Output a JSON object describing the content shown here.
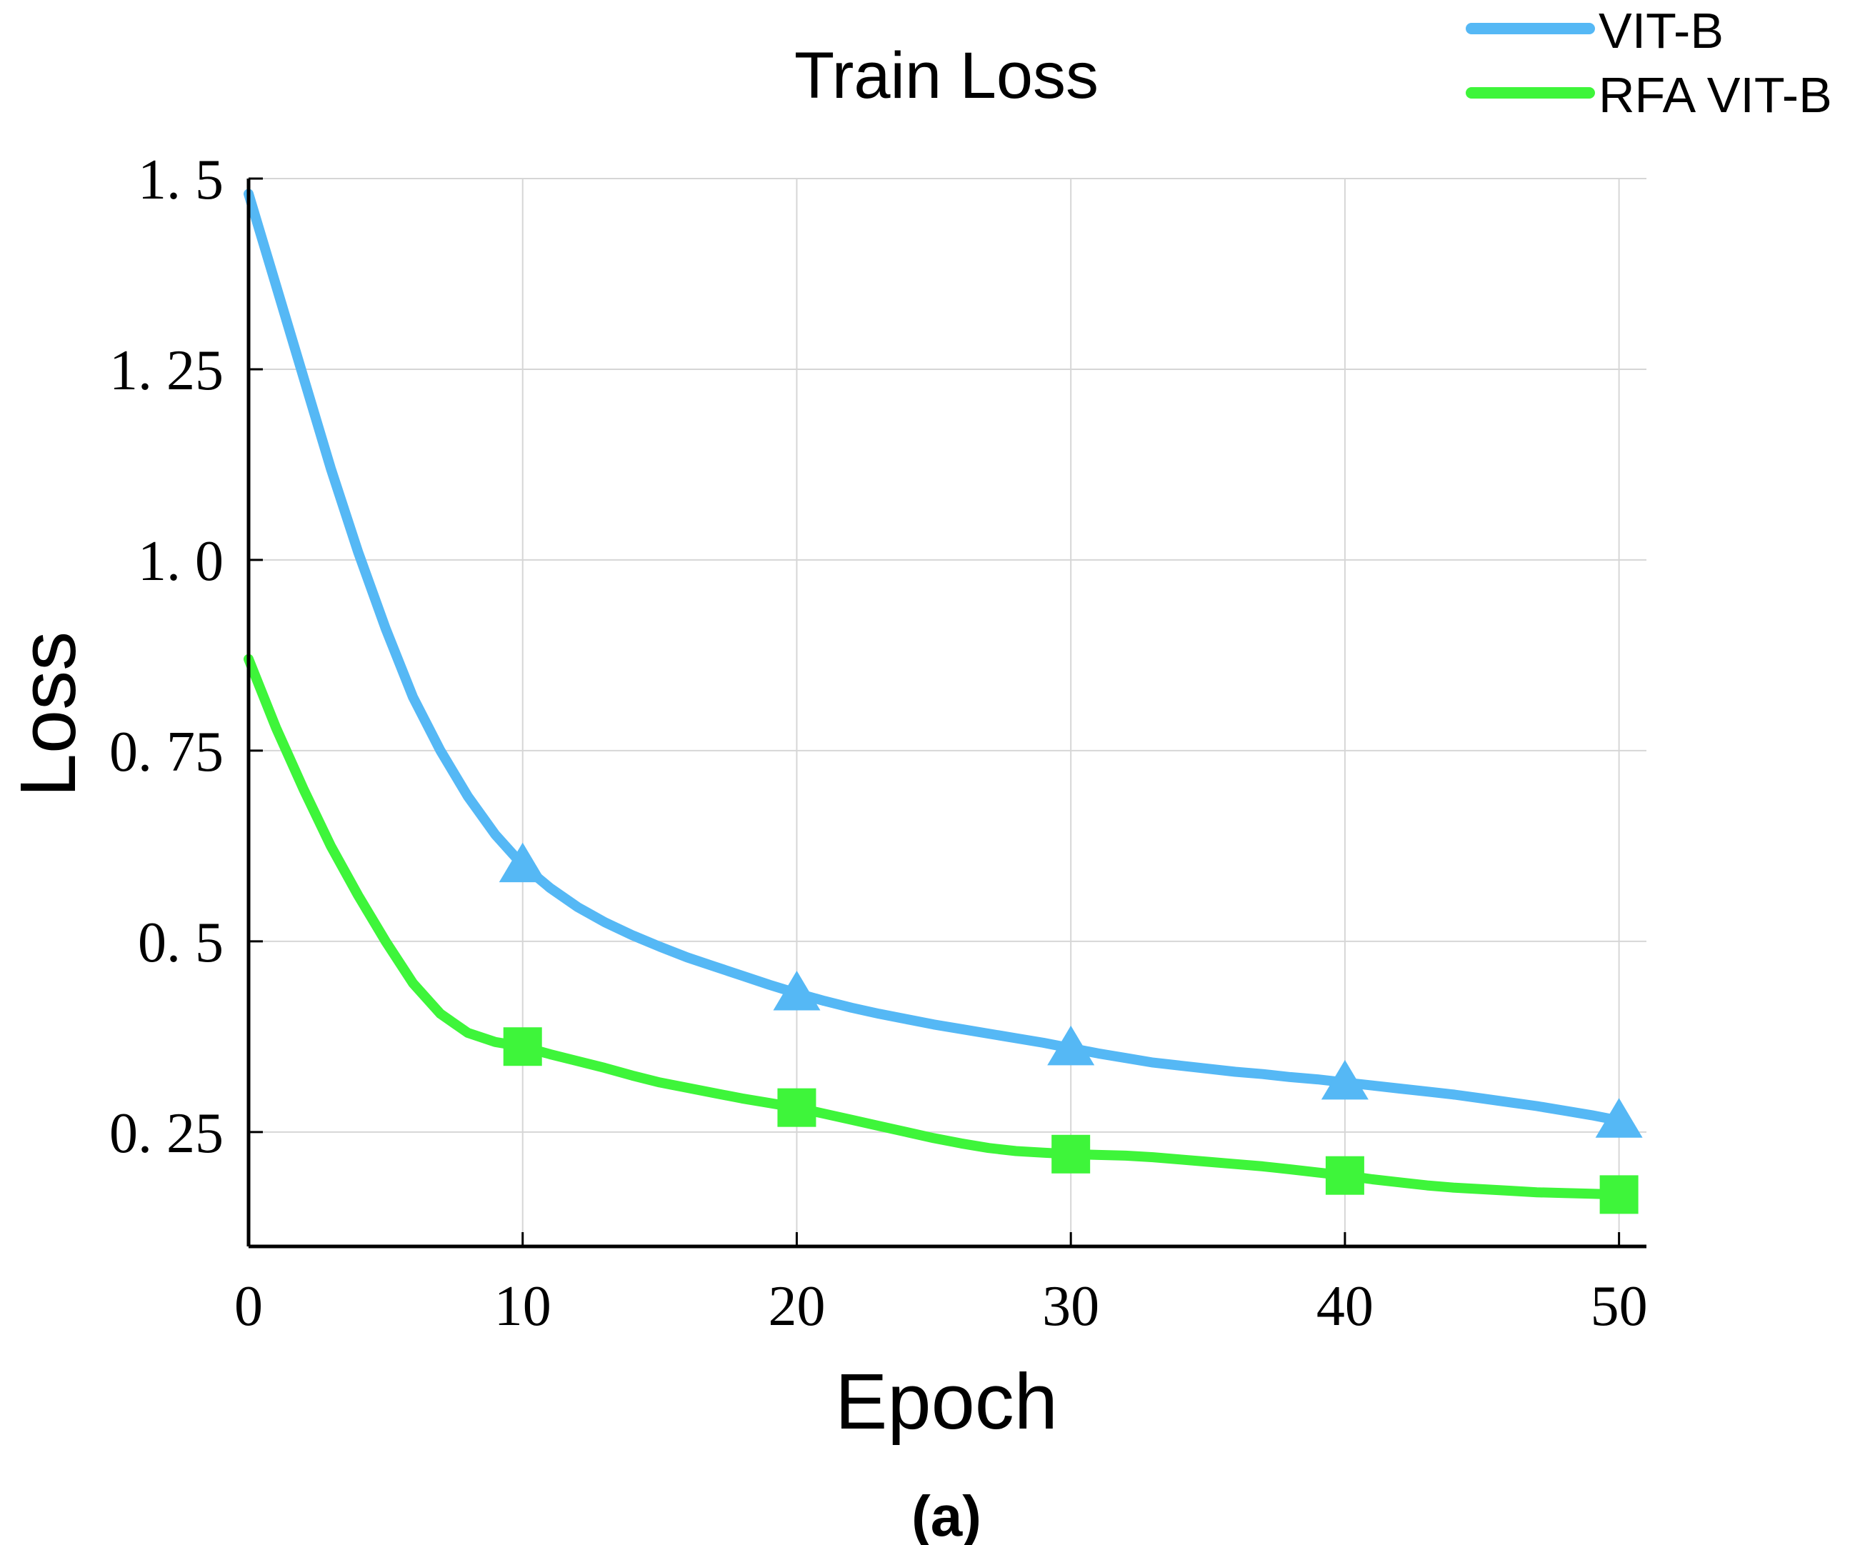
{
  "chart_data": {
    "type": "line",
    "title": "Train Loss",
    "xlabel": "Epoch",
    "ylabel": "Loss",
    "caption": "(a)",
    "xlim": [
      0,
      51
    ],
    "ylim": [
      0.1,
      1.5
    ],
    "x_ticks": [
      0,
      10,
      20,
      30,
      40,
      50
    ],
    "x_tick_labels": [
      "0",
      "10",
      "20",
      "30",
      "40",
      "50"
    ],
    "y_ticks": [
      0.25,
      0.5,
      0.75,
      1.0,
      1.25,
      1.5
    ],
    "y_tick_labels": [
      "0. 25",
      "0. 5",
      "0. 75",
      "1. 0",
      "1. 25",
      "1. 5"
    ],
    "grid": true,
    "legend_position": "top-right",
    "series": [
      {
        "name": "VIT-B",
        "color": "#55b8f5",
        "marker": "triangle",
        "marker_x": [
          10,
          20,
          30,
          40,
          50
        ],
        "x": [
          0,
          1,
          2,
          3,
          4,
          5,
          6,
          7,
          8,
          9,
          10,
          11,
          12,
          13,
          14,
          15,
          16,
          17,
          18,
          19,
          20,
          21,
          22,
          23,
          24,
          25,
          26,
          27,
          28,
          29,
          30,
          31,
          32,
          33,
          34,
          35,
          36,
          37,
          38,
          39,
          40,
          41,
          42,
          43,
          44,
          45,
          46,
          47,
          48,
          49,
          50
        ],
        "values": [
          1.48,
          1.36,
          1.24,
          1.12,
          1.01,
          0.91,
          0.82,
          0.75,
          0.69,
          0.64,
          0.6,
          0.57,
          0.545,
          0.525,
          0.508,
          0.493,
          0.479,
          0.467,
          0.455,
          0.443,
          0.432,
          0.422,
          0.413,
          0.405,
          0.398,
          0.391,
          0.385,
          0.379,
          0.373,
          0.367,
          0.36,
          0.353,
          0.347,
          0.341,
          0.337,
          0.333,
          0.329,
          0.326,
          0.322,
          0.319,
          0.315,
          0.311,
          0.307,
          0.303,
          0.299,
          0.294,
          0.289,
          0.284,
          0.278,
          0.272,
          0.265
        ]
      },
      {
        "name": "RFA VIT-B",
        "color": "#3ef53a",
        "marker": "square",
        "marker_x": [
          10,
          20,
          30,
          40,
          50
        ],
        "x": [
          0,
          1,
          2,
          3,
          4,
          5,
          6,
          7,
          8,
          9,
          10,
          11,
          12,
          13,
          14,
          15,
          16,
          17,
          18,
          19,
          20,
          21,
          22,
          23,
          24,
          25,
          26,
          27,
          28,
          29,
          30,
          31,
          32,
          33,
          34,
          35,
          36,
          37,
          38,
          39,
          40,
          41,
          42,
          43,
          44,
          45,
          46,
          47,
          48,
          49,
          50
        ],
        "values": [
          0.87,
          0.78,
          0.7,
          0.625,
          0.56,
          0.5,
          0.445,
          0.405,
          0.38,
          0.368,
          0.362,
          0.352,
          0.343,
          0.334,
          0.324,
          0.315,
          0.308,
          0.301,
          0.294,
          0.288,
          0.282,
          0.274,
          0.266,
          0.258,
          0.25,
          0.242,
          0.235,
          0.229,
          0.225,
          0.223,
          0.221,
          0.22,
          0.219,
          0.217,
          0.214,
          0.211,
          0.208,
          0.205,
          0.201,
          0.197,
          0.193,
          0.188,
          0.184,
          0.18,
          0.177,
          0.175,
          0.173,
          0.171,
          0.17,
          0.169,
          0.168
        ]
      }
    ]
  }
}
